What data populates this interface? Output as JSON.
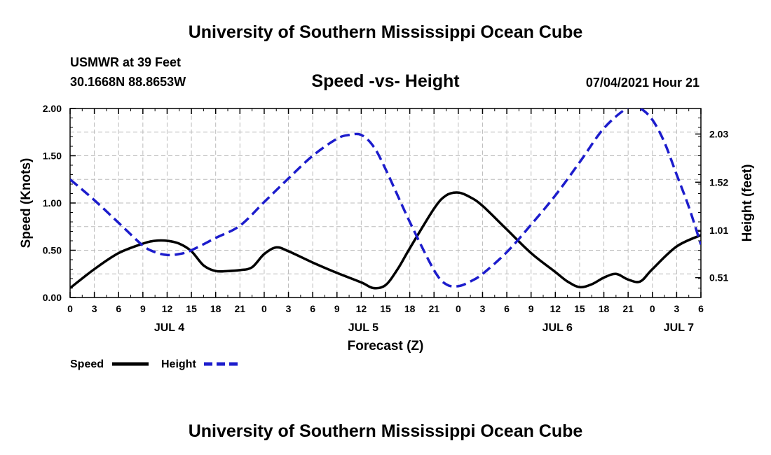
{
  "page": {
    "top_title": "University of Southern Mississippi Ocean Cube",
    "bottom_title": "University of Southern Mississippi Ocean Cube",
    "station": "USMWR at 39 Feet",
    "coords": "30.1668N  88.8653W",
    "plot_title": "Speed -vs- Height",
    "issued": "07/04/2021 Hour 21"
  },
  "chart_data": {
    "type": "line",
    "xlabel": "Forecast (Z)",
    "ylabel": "Speed (Knots)",
    "y2label": "Height (feet)",
    "xlim": [
      0,
      78
    ],
    "ylim": [
      0,
      2.0
    ],
    "y2lim": [
      0.3,
      2.3
    ],
    "grid": true,
    "x_ticks": [
      0,
      3,
      6,
      9,
      12,
      15,
      18,
      21,
      24,
      27,
      30,
      33,
      36,
      39,
      42,
      45,
      48,
      51,
      54,
      57,
      60,
      63,
      66,
      69,
      72,
      75,
      78
    ],
    "x_tick_labels": [
      "0",
      "3",
      "6",
      "9",
      "12",
      "15",
      "18",
      "21",
      "0",
      "3",
      "6",
      "9",
      "12",
      "15",
      "18",
      "21",
      "0",
      "3",
      "6",
      "9",
      "12",
      "15",
      "18",
      "21",
      "0",
      "3",
      "6"
    ],
    "y_ticks": [
      0,
      0.5,
      1.0,
      1.5,
      2.0
    ],
    "y_tick_labels": [
      "0.00",
      "0.50",
      "1.00",
      "1.50",
      "2.00"
    ],
    "y2_ticks": [
      0.51,
      1.01,
      1.52,
      2.03
    ],
    "y2_tick_labels": [
      "0.51",
      "1.01",
      "1.52",
      "2.03"
    ],
    "day_labels": [
      {
        "label": "JUL 4",
        "x": 12
      },
      {
        "label": "JUL 5",
        "x": 36
      },
      {
        "label": "JUL 6",
        "x": 60
      },
      {
        "label": "JUL 7",
        "x": 75
      }
    ],
    "series": [
      {
        "name": "Speed",
        "axis": "left",
        "color": "#000000",
        "style": "solid",
        "x": [
          0,
          3,
          6,
          9,
          10.5,
          12,
          13.5,
          15,
          16.5,
          18,
          19.5,
          21,
          22.5,
          24,
          25.5,
          27,
          30,
          33,
          36,
          37.5,
          39,
          40.5,
          42,
          45,
          46.5,
          48,
          49.5,
          51,
          54,
          57,
          60,
          61.5,
          63,
          64.5,
          66,
          67.5,
          69,
          70.5,
          72,
          75,
          78
        ],
        "values": [
          0.1,
          0.3,
          0.47,
          0.57,
          0.6,
          0.6,
          0.57,
          0.49,
          0.34,
          0.28,
          0.28,
          0.29,
          0.32,
          0.46,
          0.53,
          0.49,
          0.37,
          0.26,
          0.16,
          0.1,
          0.13,
          0.3,
          0.52,
          0.94,
          1.08,
          1.11,
          1.06,
          0.97,
          0.72,
          0.47,
          0.27,
          0.17,
          0.11,
          0.14,
          0.21,
          0.25,
          0.19,
          0.17,
          0.3,
          0.54,
          0.66
        ]
      },
      {
        "name": "Height",
        "axis": "right",
        "color": "#1c1ccc",
        "style": "dashed",
        "x": [
          0,
          3,
          6,
          9,
          10.5,
          12,
          13.5,
          15,
          18,
          21,
          24,
          27,
          30,
          33,
          34.5,
          36,
          37.5,
          39,
          42,
          45,
          46.5,
          48,
          49.5,
          51,
          54,
          57,
          60,
          63,
          66,
          69,
          70.5,
          72,
          73.5,
          75,
          76.5,
          78
        ],
        "values": [
          1.55,
          1.33,
          1.09,
          0.85,
          0.78,
          0.75,
          0.76,
          0.8,
          0.93,
          1.06,
          1.31,
          1.56,
          1.8,
          1.98,
          2.02,
          2.02,
          1.9,
          1.66,
          1.1,
          0.59,
          0.44,
          0.42,
          0.47,
          0.55,
          0.78,
          1.07,
          1.38,
          1.73,
          2.09,
          2.31,
          2.3,
          2.18,
          1.94,
          1.6,
          1.26,
          0.86
        ]
      }
    ]
  }
}
